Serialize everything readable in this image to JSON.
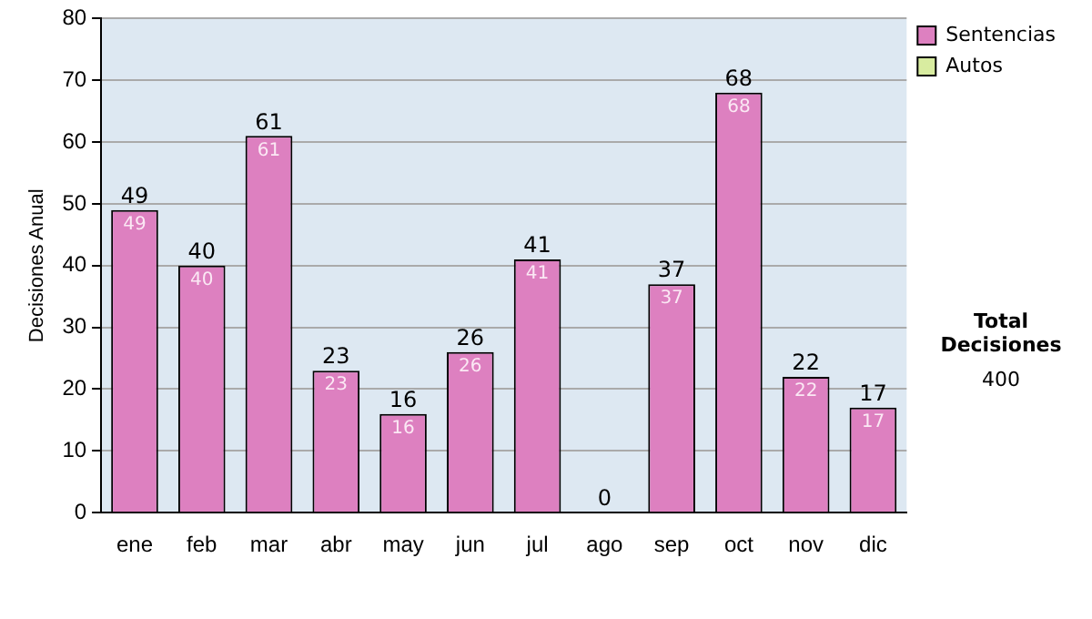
{
  "chart_data": {
    "type": "bar",
    "ylabel": "Decisiones Anual",
    "categories": [
      "ene",
      "feb",
      "mar",
      "abr",
      "may",
      "jun",
      "jul",
      "ago",
      "sep",
      "oct",
      "nov",
      "dic"
    ],
    "series": [
      {
        "name": "Sentencias",
        "color": "#dd80c0",
        "values": [
          49,
          40,
          61,
          23,
          16,
          26,
          41,
          0,
          37,
          68,
          22,
          17
        ],
        "value_labels": [
          "49",
          "40",
          "61",
          "23",
          "16",
          "26",
          "41",
          null,
          "37",
          "68",
          "22",
          "17"
        ]
      },
      {
        "name": "Autos",
        "color": "#d8eca0",
        "values": [
          0,
          0,
          0,
          0,
          0,
          0,
          0,
          0,
          0,
          0,
          0,
          0
        ]
      }
    ],
    "stacked": true,
    "totals": [
      "49",
      "40",
      "61",
      "23",
      "16",
      "26",
      "41",
      "0",
      "37",
      "68",
      "22",
      "17"
    ],
    "ylim": [
      0,
      80
    ],
    "yticks": [
      0,
      10,
      20,
      30,
      40,
      50,
      60,
      70,
      80
    ],
    "grid": "y",
    "legend": "right",
    "annotations": [
      "Total Decisiones",
      "400"
    ]
  }
}
